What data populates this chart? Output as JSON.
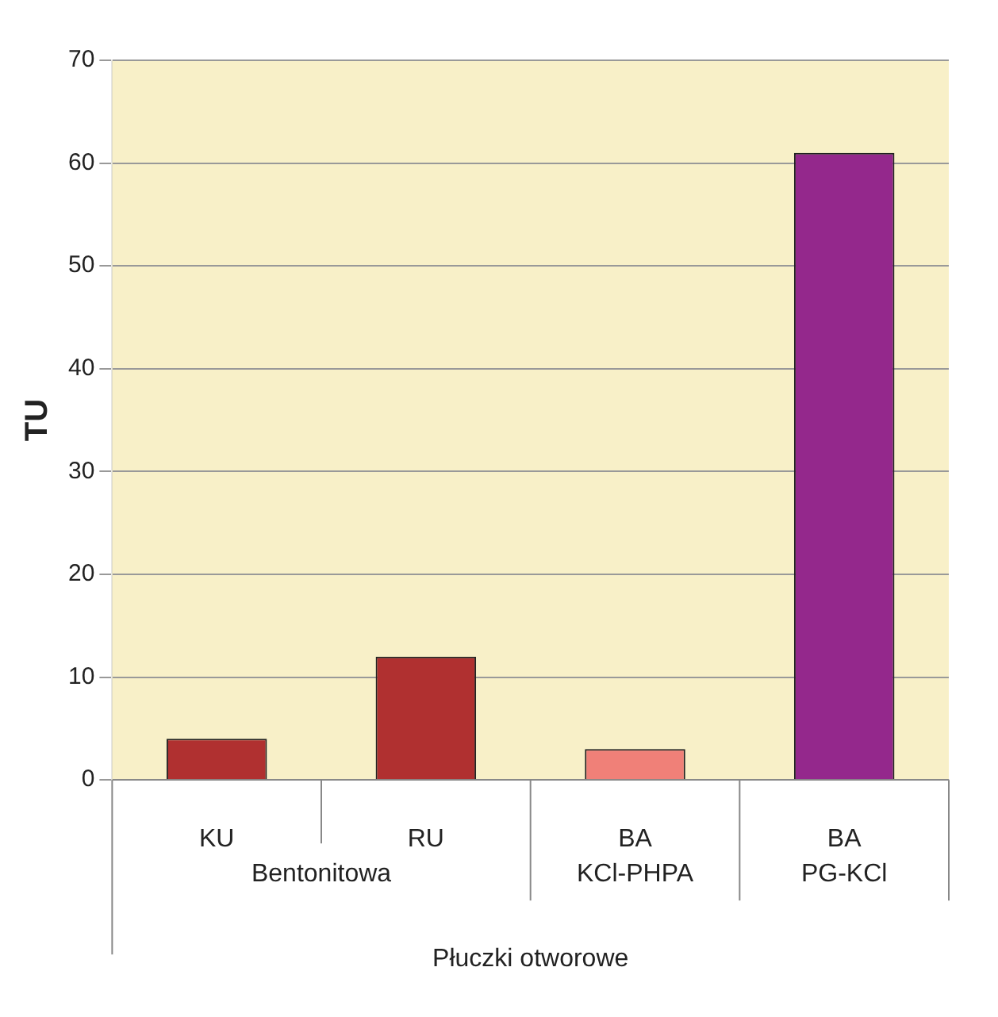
{
  "chart_data": {
    "type": "bar",
    "ylabel": "TU",
    "xlabel": "Płuczki otworowe",
    "categories": [
      "KU",
      "RU",
      "BA",
      "BA"
    ],
    "values": [
      4,
      12,
      3,
      61
    ],
    "colors": [
      "#b03030",
      "#b03030",
      "#f08078",
      "#94288c"
    ],
    "annotations": [
      "Bentonitowa",
      "KCl-PHPA",
      "PG-KCl"
    ],
    "ylim": [
      0,
      70
    ],
    "yticks": [
      0,
      10,
      20,
      30,
      40,
      50,
      60,
      70
    ],
    "grid": "y",
    "legend": false
  }
}
